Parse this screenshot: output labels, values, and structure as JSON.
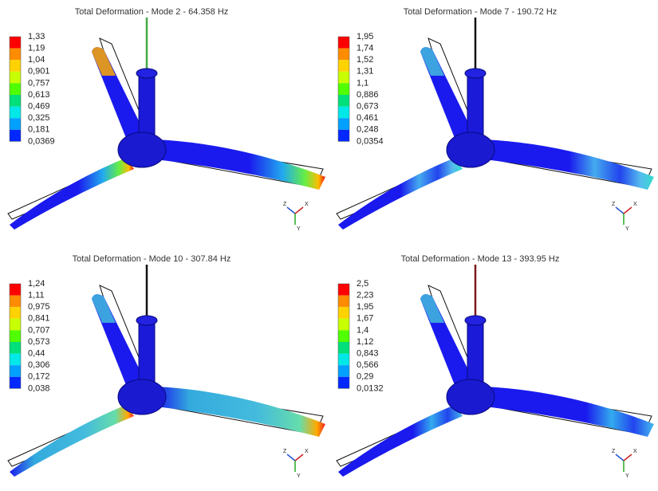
{
  "panels": [
    {
      "title": "Total Deformation - Mode 2 - 64.358 Hz",
      "legend": [
        "1,33",
        "1,19",
        "1,04",
        "0,901",
        "0,757",
        "0,613",
        "0,469",
        "0,325",
        "0,181",
        "0,0369"
      ],
      "triad": [
        "Z",
        "X",
        "Y"
      ]
    },
    {
      "title": "Total Deformation - Mode 7 - 190.72 Hz",
      "legend": [
        "1,95",
        "1,74",
        "1,52",
        "1,31",
        "1,1",
        "0,886",
        "0,673",
        "0,461",
        "0,248",
        "0,0354"
      ],
      "triad": [
        "Z",
        "X",
        "Y"
      ]
    },
    {
      "title": "Total Deformation - Mode 10 - 307.84 Hz",
      "legend": [
        "1,24",
        "1,11",
        "0,975",
        "0,841",
        "0,707",
        "0,573",
        "0,44",
        "0,306",
        "0,172",
        "0,038"
      ],
      "triad": [
        "Z",
        "X",
        "Y"
      ]
    },
    {
      "title": "Total Deformation - Mode 13 - 393.95 Hz",
      "legend": [
        "2,5",
        "2,23",
        "1,95",
        "1,67",
        "1,4",
        "1,12",
        "0,843",
        "0,566",
        "0,29",
        "0,0132"
      ],
      "triad": [
        "Z",
        "X",
        "Y"
      ]
    }
  ]
}
